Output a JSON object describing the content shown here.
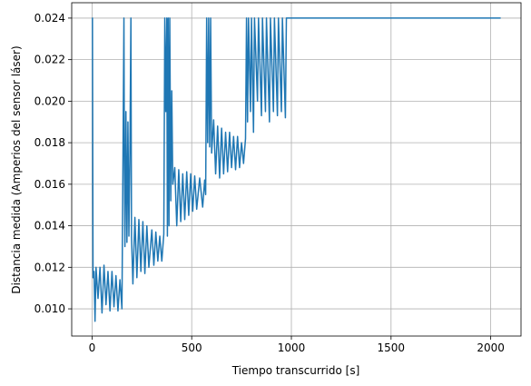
{
  "chart_data": {
    "type": "line",
    "xlabel": "Tiempo transcurrido [s]",
    "ylabel": "Distancia medida (Amperios del sensor láser)",
    "x": [
      0,
      2,
      5,
      10,
      15,
      20,
      30,
      40,
      50,
      60,
      70,
      80,
      90,
      100,
      110,
      120,
      130,
      140,
      150,
      160,
      162,
      165,
      170,
      175,
      180,
      185,
      190,
      195,
      198,
      205,
      215,
      225,
      235,
      245,
      255,
      265,
      275,
      285,
      300,
      310,
      320,
      330,
      340,
      350,
      360,
      365,
      370,
      375,
      378,
      382,
      386,
      390,
      395,
      400,
      405,
      415,
      425,
      435,
      445,
      455,
      465,
      475,
      485,
      495,
      505,
      515,
      525,
      540,
      555,
      565,
      570,
      575,
      580,
      585,
      590,
      595,
      600,
      610,
      620,
      630,
      640,
      650,
      660,
      670,
      680,
      690,
      700,
      710,
      720,
      730,
      740,
      750,
      760,
      770,
      775,
      780,
      785,
      795,
      800,
      810,
      815,
      830,
      835,
      850,
      855,
      870,
      875,
      890,
      895,
      910,
      915,
      930,
      935,
      950,
      955,
      970,
      975,
      1000,
      1500,
      2050
    ],
    "series": [
      {
        "name": "Distancia",
        "color": "#1f77b4",
        "values": [
          0.024,
          0.024,
          0.0115,
          0.0118,
          0.0094,
          0.012,
          0.0105,
          0.012,
          0.0098,
          0.0121,
          0.0102,
          0.0118,
          0.0099,
          0.0118,
          0.0101,
          0.0116,
          0.0099,
          0.0114,
          0.01,
          0.024,
          0.0175,
          0.013,
          0.0195,
          0.0132,
          0.019,
          0.0135,
          0.0175,
          0.024,
          0.0135,
          0.0112,
          0.0144,
          0.0115,
          0.0143,
          0.0118,
          0.0142,
          0.0117,
          0.014,
          0.012,
          0.0138,
          0.0121,
          0.0137,
          0.0123,
          0.0135,
          0.0123,
          0.0136,
          0.024,
          0.0195,
          0.024,
          0.0135,
          0.024,
          0.014,
          0.024,
          0.0152,
          0.0205,
          0.016,
          0.0168,
          0.014,
          0.0167,
          0.0142,
          0.0165,
          0.0143,
          0.0166,
          0.0145,
          0.0165,
          0.0147,
          0.0164,
          0.0148,
          0.0163,
          0.0149,
          0.0162,
          0.0155,
          0.024,
          0.018,
          0.024,
          0.0178,
          0.024,
          0.0175,
          0.0191,
          0.0165,
          0.0188,
          0.0163,
          0.0187,
          0.0165,
          0.0185,
          0.0166,
          0.0185,
          0.0168,
          0.0183,
          0.0167,
          0.0183,
          0.0168,
          0.018,
          0.017,
          0.0182,
          0.024,
          0.019,
          0.024,
          0.0195,
          0.024,
          0.0185,
          0.024,
          0.02,
          0.024,
          0.0193,
          0.024,
          0.0195,
          0.024,
          0.019,
          0.024,
          0.0195,
          0.024,
          0.0193,
          0.024,
          0.0195,
          0.024,
          0.0192,
          0.024,
          0.024,
          0.024,
          0.024
        ]
      }
    ],
    "xlim": [
      -102,
      2152
    ],
    "ylim": [
      0.00869,
      0.02474
    ],
    "xticks": [
      0,
      500,
      1000,
      1500,
      2000
    ],
    "yticks": [
      {
        "value": 0.01,
        "label": "0.010"
      },
      {
        "value": 0.012,
        "label": "0.012"
      },
      {
        "value": 0.014,
        "label": "0.014"
      },
      {
        "value": 0.016,
        "label": "0.016"
      },
      {
        "value": 0.018,
        "label": "0.018"
      },
      {
        "value": 0.02,
        "label": "0.020"
      },
      {
        "value": 0.022,
        "label": "0.022"
      },
      {
        "value": 0.024,
        "label": "0.024"
      }
    ],
    "grid": true
  }
}
